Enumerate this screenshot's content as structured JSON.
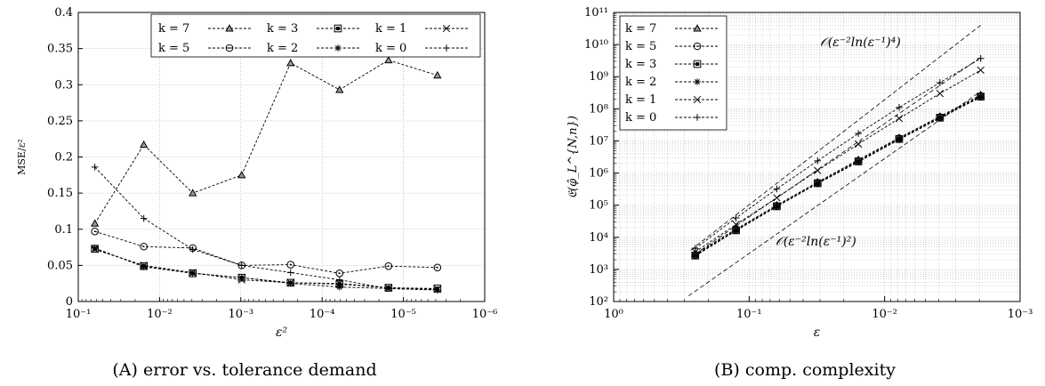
{
  "chart_data": [
    {
      "type": "line",
      "caption": "(A) error vs. tolerance demand",
      "xlabel": "ε²",
      "ylabel": "MSE/ε²",
      "xscale": "log",
      "x_reversed": true,
      "xlim": [
        0.1,
        1e-06
      ],
      "ylim": [
        0,
        0.4
      ],
      "grid": true,
      "legend_placement": "top-right",
      "x_ticks": [
        "10⁻¹",
        "10⁻²",
        "10⁻³",
        "10⁻⁴",
        "10⁻⁵",
        "10⁻⁶"
      ],
      "y_ticks": [
        "0",
        "0.05",
        "0.1",
        "0.15",
        "0.2",
        "0.25",
        "0.3",
        "0.35",
        "0.4"
      ],
      "x": [
        0.0625,
        0.015625,
        0.00390625,
        0.0009765625,
        0.000244140625,
        6.103515625e-05,
        1.52587890625e-05,
        3.814697265625e-06
      ],
      "series": [
        {
          "name": "k = 7",
          "marker": "triangle",
          "values": [
            0.108,
            0.217,
            0.15,
            0.175,
            0.33,
            0.293,
            0.334,
            0.313
          ]
        },
        {
          "name": "k = 3",
          "marker": "square",
          "values": [
            0.073,
            0.049,
            0.039,
            0.033,
            0.026,
            0.024,
            0.019,
            0.018
          ]
        },
        {
          "name": "k = 1",
          "marker": "x",
          "values": [
            0.072,
            0.05,
            0.04,
            0.03,
            0.026,
            0.025,
            0.019,
            0.017
          ]
        },
        {
          "name": "k = 5",
          "marker": "circle",
          "values": [
            0.097,
            0.076,
            0.074,
            0.05,
            0.051,
            0.039,
            0.049,
            0.047
          ]
        },
        {
          "name": "k = 2",
          "marker": "asterisk",
          "values": [
            0.074,
            0.048,
            0.039,
            0.033,
            0.025,
            0.02,
            0.018,
            0.016
          ]
        },
        {
          "name": "k = 0",
          "marker": "plus",
          "values": [
            0.186,
            0.115,
            0.072,
            0.05,
            0.04,
            0.03,
            0.018,
            0.016
          ]
        }
      ]
    },
    {
      "type": "line",
      "caption": "(B) comp. complexity",
      "xlabel": "ε",
      "ylabel": "𝔈(φ̂_L^{N,n})",
      "xscale": "log",
      "yscale": "log",
      "x_reversed": true,
      "xlim": [
        1,
        0.001
      ],
      "ylim": [
        100,
        100000000000
      ],
      "grid": true,
      "legend_placement": "top-left",
      "x_ticks": [
        "10⁰",
        "10⁻¹",
        "10⁻²",
        "10⁻³"
      ],
      "y_ticks": [
        "10²",
        "10³",
        "10⁴",
        "10⁵",
        "10⁶",
        "10⁷",
        "10⁸",
        "10⁹",
        "10¹⁰",
        "10¹¹"
      ],
      "x": [
        0.25,
        0.125,
        0.0625,
        0.03125,
        0.015625,
        0.0078125,
        0.00390625,
        0.001953125
      ],
      "series": [
        {
          "name": "k = 7",
          "marker": "triangle",
          "values": [
            3000,
            18000,
            100000,
            520000,
            2600000,
            12500000,
            58000000,
            270000000
          ]
        },
        {
          "name": "k = 5",
          "marker": "circle",
          "values": [
            2800,
            17000,
            95000,
            500000,
            2400000,
            12000000,
            55000000,
            250000000
          ]
        },
        {
          "name": "k = 3",
          "marker": "square",
          "values": [
            2700,
            16500,
            92000,
            480000,
            2300000,
            11500000,
            53000000,
            240000000
          ]
        },
        {
          "name": "k = 2",
          "marker": "asterisk",
          "values": [
            2600,
            16000,
            90000,
            470000,
            2200000,
            11000000,
            51000000,
            230000000
          ]
        },
        {
          "name": "k = 1",
          "marker": "x",
          "values": [
            3500,
            25000,
            170000,
            1200000,
            8000000,
            50000000,
            300000000,
            1600000000
          ]
        },
        {
          "name": "k = 0",
          "marker": "plus",
          "values": [
            4500,
            40000,
            320000,
            2400000,
            17000000,
            110000000,
            650000000,
            3700000000
          ]
        }
      ],
      "reference_lines": [
        {
          "label": "𝒪(ε⁻²ln(ε⁻¹)⁴)",
          "points": [
            [
              0.27,
              4000
            ],
            [
              0.001953125,
              40000000000
            ]
          ]
        },
        {
          "label": "",
          "points": [
            [
              0.25,
              3000
            ],
            [
              0.001953125,
              4000000000
            ]
          ]
        },
        {
          "label": "𝒪(ε⁻²ln(ε⁻¹)²)",
          "points": [
            [
              0.28,
              150
            ],
            [
              0.001953125,
              350000000
            ]
          ]
        }
      ]
    }
  ]
}
